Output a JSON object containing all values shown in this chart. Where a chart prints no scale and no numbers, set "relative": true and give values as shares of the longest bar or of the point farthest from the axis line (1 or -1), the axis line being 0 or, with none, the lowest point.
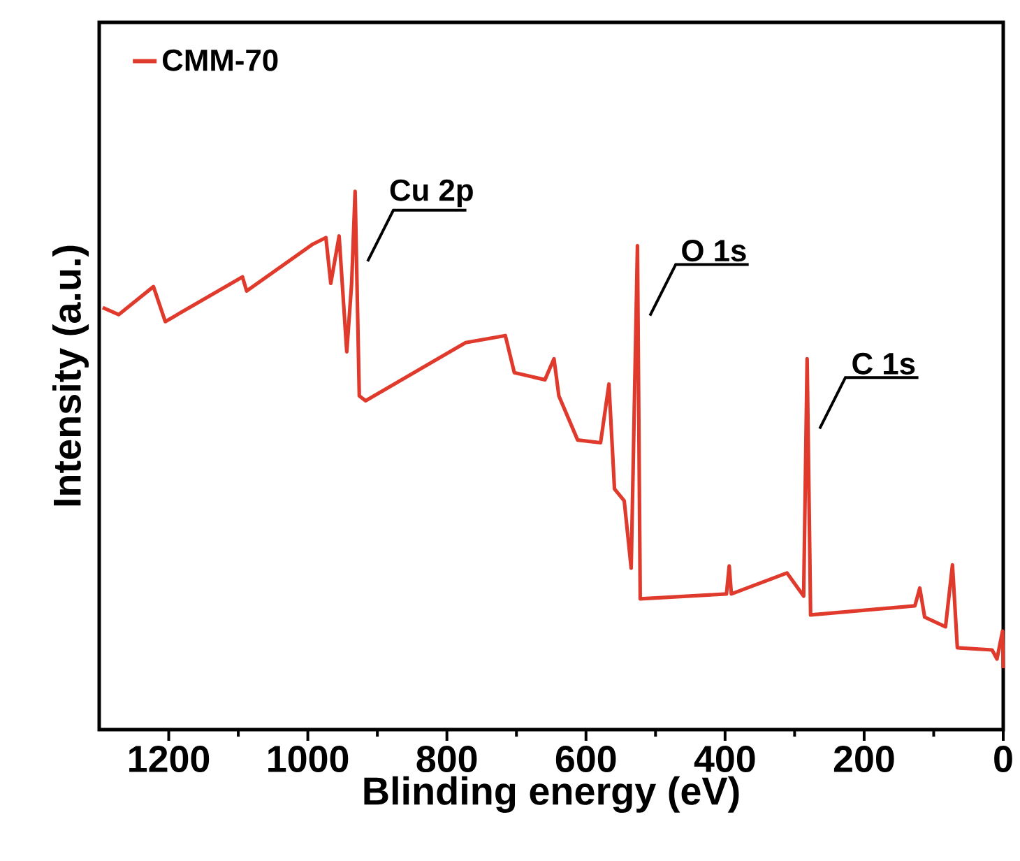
{
  "chart_data": {
    "type": "line",
    "relative": true,
    "xlabel": "Blinding energy (eV)",
    "ylabel": "Intensity (a.u.)",
    "xlim": [
      1300,
      0
    ],
    "xticks": [
      1200,
      1000,
      800,
      600,
      400,
      200,
      0,
      {
        "value": 1100,
        "label": null
      },
      {
        "value": 900,
        "label": null
      },
      {
        "value": 700,
        "label": null
      },
      {
        "value": 500,
        "label": null
      },
      {
        "value": 300,
        "label": null
      },
      {
        "value": 100,
        "label": null
      }
    ],
    "legend": "top left",
    "marker": "none",
    "line_style": "solid",
    "annotations": [
      {
        "text": "Cu 2p",
        "x": 932,
        "y": 1.0
      },
      {
        "text": "O 1s",
        "x": 526,
        "y": 0.899
      },
      {
        "text": "C 1s",
        "x": 282,
        "y": 0.689
      }
    ],
    "series": [
      {
        "name": "CMM-70",
        "color": "#e03a2c",
        "x": [
          1295,
          1272,
          1222,
          1205,
          1094,
          1088,
          994,
          974,
          967,
          955,
          944,
          937,
          932,
          926,
          917,
          773,
          716,
          703,
          659,
          646,
          639,
          612,
          579,
          567,
          559,
          545,
          535,
          526,
          522,
          398,
          394,
          391,
          311,
          287,
          282,
          277,
          127,
          120,
          113,
          83,
          73,
          66,
          16,
          9,
          1,
          0
        ],
        "values": [
          0.784,
          0.771,
          0.823,
          0.758,
          0.841,
          0.815,
          0.901,
          0.914,
          0.829,
          0.917,
          0.702,
          0.829,
          1.0,
          0.62,
          0.611,
          0.719,
          0.732,
          0.663,
          0.65,
          0.689,
          0.62,
          0.538,
          0.533,
          0.642,
          0.447,
          0.425,
          0.3,
          0.899,
          0.243,
          0.252,
          0.304,
          0.252,
          0.291,
          0.248,
          0.689,
          0.213,
          0.23,
          0.263,
          0.209,
          0.191,
          0.306,
          0.152,
          0.148,
          0.131,
          0.183,
          0.114
        ]
      }
    ]
  }
}
